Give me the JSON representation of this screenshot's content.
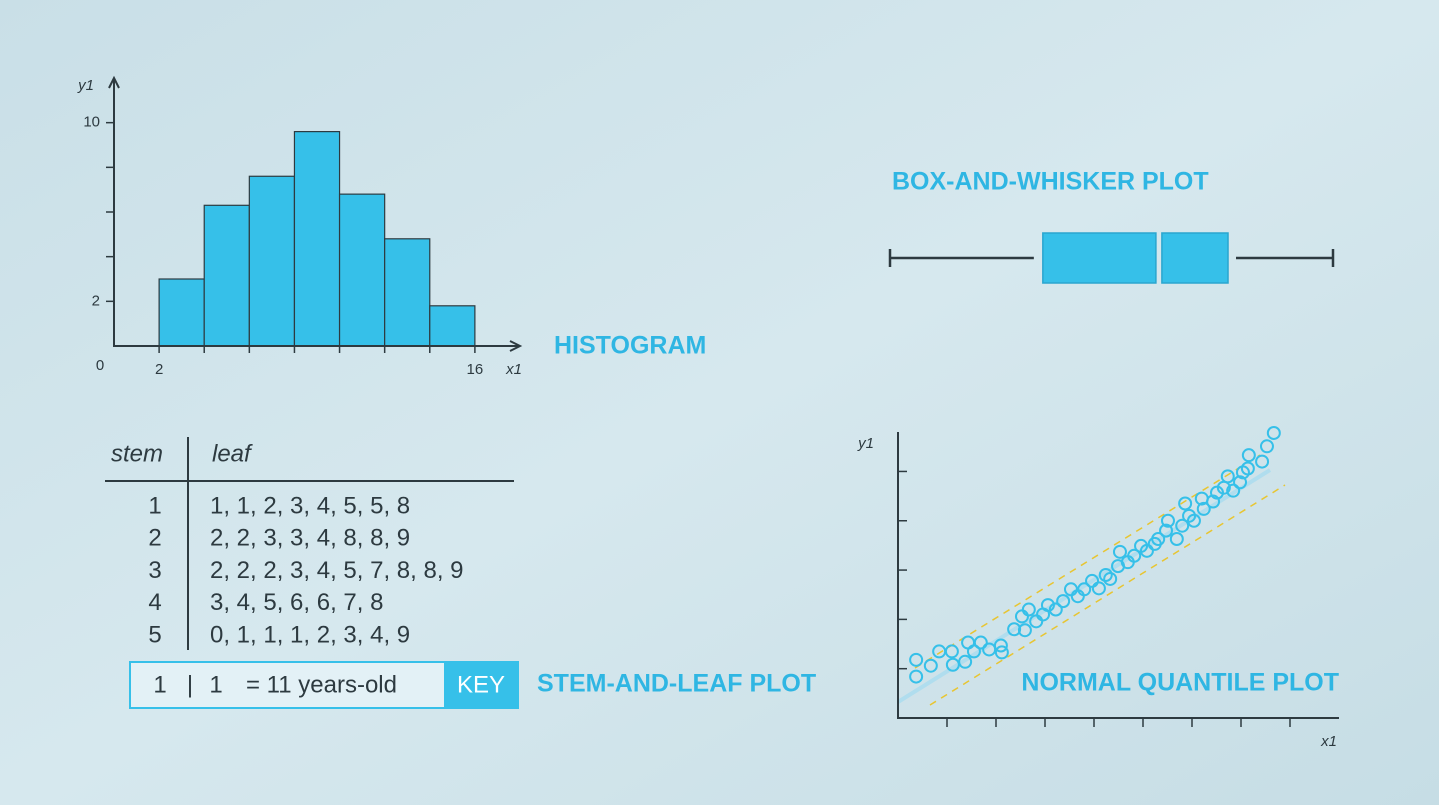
{
  "chart_data": [
    {
      "type": "histogram",
      "title": "HISTOGRAM",
      "x_label": "x1",
      "y_label": "y1",
      "origin_label": 0,
      "bins": [
        2,
        4,
        6,
        8,
        10,
        12,
        14,
        16
      ],
      "values": [
        3.0,
        6.3,
        7.6,
        9.6,
        6.8,
        4.8,
        1.8
      ],
      "color": "#36c0e9",
      "xlim": [
        0,
        18
      ],
      "xticks": [
        2,
        16
      ],
      "ylim": [
        0,
        12
      ],
      "yticks": [
        2,
        10
      ],
      "minor_yticks": [
        4,
        6,
        8
      ]
    },
    {
      "type": "box",
      "title": "BOX-AND-WHISKER PLOT",
      "color": "#36c0e9",
      "min": 0,
      "q1": 34.5,
      "median": 60.7,
      "q3": 76.3,
      "max": 100,
      "xlim": [
        0,
        100
      ]
    },
    {
      "type": "scatter",
      "title": "NORMAL QUANTILE PLOT",
      "x_label": "x1",
      "y_label": "y1",
      "color": "#36c0e9",
      "x": [
        0.37,
        0.37,
        0.67,
        0.84,
        1.12,
        1.1,
        1.37,
        1.43,
        1.55,
        1.69,
        1.86,
        2.1,
        2.12,
        2.37,
        2.53,
        2.59,
        2.67,
        2.82,
        2.96,
        3.06,
        3.22,
        3.37,
        3.53,
        3.67,
        3.8,
        3.96,
        4.1,
        4.24,
        4.33,
        4.49,
        4.53,
        4.69,
        4.82,
        4.96,
        5.08,
        5.24,
        5.31,
        5.47,
        5.51,
        5.69,
        5.8,
        5.86,
        5.94,
        6.04,
        6.2,
        6.24,
        6.43,
        6.51,
        6.65,
        6.73,
        6.84,
        6.98,
        7.04,
        7.14,
        7.16,
        7.43,
        7.53,
        7.67
      ],
      "values": [
        0.84,
        1.18,
        1.06,
        1.35,
        1.08,
        1.35,
        1.14,
        1.53,
        1.35,
        1.53,
        1.39,
        1.47,
        1.33,
        1.8,
        2.06,
        1.78,
        2.2,
        1.96,
        2.1,
        2.29,
        2.2,
        2.37,
        2.61,
        2.47,
        2.61,
        2.78,
        2.63,
        2.9,
        2.82,
        3.08,
        3.37,
        3.16,
        3.29,
        3.49,
        3.39,
        3.53,
        3.63,
        3.8,
        4.0,
        3.63,
        3.9,
        4.35,
        4.1,
        4.0,
        4.45,
        4.24,
        4.39,
        4.57,
        4.67,
        4.9,
        4.61,
        4.78,
        4.98,
        5.06,
        5.33,
        5.2,
        5.51,
        5.78
      ],
      "xlim": [
        0,
        9
      ],
      "xticks": [
        1,
        2,
        3,
        4,
        5,
        6,
        7,
        8
      ],
      "ylim": [
        0,
        5.8
      ],
      "yticks": [
        1,
        2,
        3,
        4,
        5
      ]
    }
  ],
  "stem_leaf": {
    "title": "STEM-AND-LEAF PLOT",
    "header": {
      "stem": "stem",
      "leaf": "leaf"
    },
    "rows": [
      [
        "1",
        "1, 1, 2, 3, 4, 5, 5, 8"
      ],
      [
        "2",
        "2, 2, 3, 3, 4, 8, 8, 9"
      ],
      [
        "3",
        "2, 2, 2, 3, 4, 5, 7, 8, 8, 9"
      ],
      [
        "4",
        "3, 4, 5, 6, 6, 7, 8"
      ],
      [
        "5",
        "0, 1, 1, 1, 2, 3, 4, 9"
      ]
    ],
    "key": {
      "stem": "1",
      "separator": "|",
      "leaf": "1",
      "meaning": "= 11 years-old",
      "label": "KEY"
    }
  }
}
